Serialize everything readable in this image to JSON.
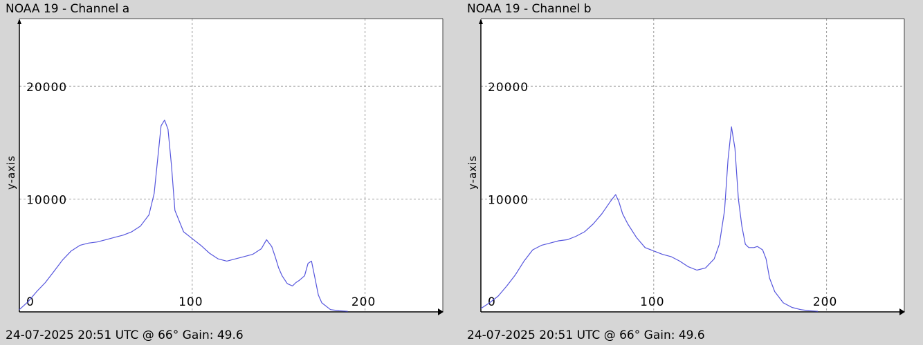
{
  "charts": [
    {
      "title": "NOAA 19 - Channel a",
      "footer": "24-07-2025 20:51 UTC @ 66° Gain: 49.6",
      "ylabel": "y-axis",
      "x_ticks": [
        "0",
        "100",
        "200"
      ],
      "y_ticks": [
        "10000",
        "20000"
      ]
    },
    {
      "title": "NOAA 19 - Channel b",
      "footer": "24-07-2025 20:51 UTC @ 66° Gain: 49.6",
      "ylabel": "y-axis",
      "x_ticks": [
        "0",
        "100",
        "200"
      ],
      "y_ticks": [
        "10000",
        "20000"
      ]
    }
  ],
  "line_color": "#5555dd",
  "chart_data": [
    {
      "type": "line",
      "title": "NOAA 19 - Channel a",
      "xlabel": "",
      "ylabel": "y-axis",
      "xlim": [
        0,
        245
      ],
      "ylim": [
        0,
        26000
      ],
      "grid": true,
      "x_ticks": [
        0,
        100,
        200
      ],
      "y_ticks": [
        10000,
        20000
      ],
      "series": [
        {
          "x": [
            0,
            5,
            10,
            15,
            20,
            25,
            30,
            35,
            40,
            45,
            50,
            55,
            60,
            65,
            70,
            75,
            78,
            80,
            82,
            84,
            86,
            88,
            90,
            95,
            100,
            105,
            110,
            115,
            120,
            125,
            130,
            135,
            140,
            143,
            146,
            148,
            150,
            152,
            155,
            158,
            160,
            162,
            165,
            167,
            169,
            171,
            173,
            175,
            180,
            185,
            190
          ],
          "y": [
            200,
            900,
            1800,
            2600,
            3600,
            4600,
            5400,
            5900,
            6100,
            6200,
            6400,
            6600,
            6800,
            7100,
            7600,
            8600,
            10500,
            13500,
            16500,
            17000,
            16200,
            13000,
            9000,
            7100,
            6500,
            5900,
            5200,
            4700,
            4500,
            4700,
            4900,
            5100,
            5600,
            6400,
            5800,
            4900,
            3900,
            3200,
            2500,
            2300,
            2600,
            2800,
            3200,
            4300,
            4500,
            3000,
            1500,
            800,
            200,
            100,
            50
          ]
        }
      ]
    },
    {
      "type": "line",
      "title": "NOAA 19 - Channel b",
      "xlabel": "",
      "ylabel": "y-axis",
      "xlim": [
        0,
        245
      ],
      "ylim": [
        0,
        26000
      ],
      "grid": true,
      "x_ticks": [
        0,
        100,
        200
      ],
      "y_ticks": [
        10000,
        20000
      ],
      "series": [
        {
          "x": [
            0,
            5,
            10,
            15,
            20,
            25,
            30,
            35,
            40,
            45,
            50,
            55,
            60,
            65,
            70,
            75,
            78,
            80,
            82,
            85,
            90,
            95,
            100,
            105,
            110,
            115,
            120,
            125,
            130,
            135,
            138,
            141,
            143,
            145,
            147,
            149,
            151,
            153,
            155,
            158,
            160,
            163,
            165,
            167,
            170,
            175,
            180,
            185,
            190,
            195
          ],
          "y": [
            300,
            800,
            1400,
            2300,
            3300,
            4500,
            5500,
            5900,
            6100,
            6300,
            6400,
            6700,
            7100,
            7800,
            8700,
            9800,
            10400,
            9700,
            8700,
            7800,
            6600,
            5700,
            5400,
            5100,
            4900,
            4500,
            4000,
            3700,
            3900,
            4700,
            6000,
            9000,
            13500,
            16400,
            14500,
            10000,
            7600,
            6000,
            5700,
            5700,
            5800,
            5500,
            4700,
            3000,
            1800,
            800,
            400,
            200,
            100,
            50
          ]
        }
      ]
    }
  ]
}
